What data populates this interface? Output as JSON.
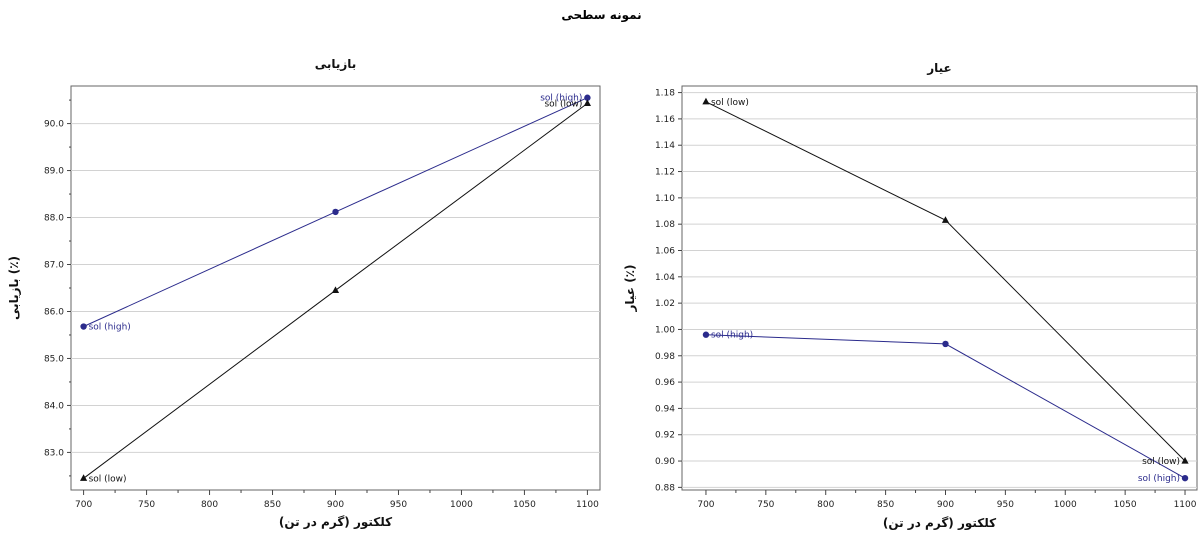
{
  "figure": {
    "title": "نمونه سطحی"
  },
  "chart_data": [
    {
      "type": "line",
      "title": "بازیابی",
      "xlabel": "کلکتور (گرم در تن)",
      "ylabel": "بازیابی (٪)",
      "xlim": [
        690,
        1110
      ],
      "ylim": [
        82.2,
        90.8
      ],
      "xticks": [
        700,
        750,
        800,
        850,
        900,
        950,
        1000,
        1050,
        1100
      ],
      "xtick_labels": [
        "700",
        "750",
        "800",
        "850",
        "900",
        "950",
        "1000",
        "1050",
        "1100"
      ],
      "yticks": [
        83,
        84,
        85,
        86,
        87,
        88,
        89,
        90
      ],
      "ytick_labels": [
        "83.0",
        "84.0",
        "85.0",
        "86.0",
        "87.0",
        "88.0",
        "89.0",
        "90.0"
      ],
      "grid": true,
      "series": [
        {
          "name": "sol (high)",
          "color": "#2b2b8c",
          "marker": "circle",
          "x": [
            700,
            900,
            1100
          ],
          "y": [
            85.68,
            88.12,
            90.55
          ]
        },
        {
          "name": "sol (low)",
          "color": "#111111",
          "marker": "triangle",
          "x": [
            700,
            900,
            1100
          ],
          "y": [
            82.45,
            86.45,
            90.43
          ]
        }
      ],
      "annotations": [
        {
          "text": "sol (high)",
          "series": 0,
          "point": 0,
          "side": "right"
        },
        {
          "text": "sol (high)",
          "series": 0,
          "point": 2,
          "side": "left"
        },
        {
          "text": "sol (low)",
          "series": 1,
          "point": 0,
          "side": "right"
        },
        {
          "text": "sol (low)",
          "series": 1,
          "point": 2,
          "side": "left"
        }
      ]
    },
    {
      "type": "line",
      "title": "عیار",
      "xlabel": "کلکتور (گرم در تن)",
      "ylabel": "عیار (٪)",
      "xlim": [
        680,
        1110
      ],
      "ylim": [
        0.878,
        1.185
      ],
      "xticks": [
        700,
        750,
        800,
        850,
        900,
        950,
        1000,
        1050,
        1100
      ],
      "xtick_labels": [
        "700",
        "750",
        "800",
        "850",
        "900",
        "950",
        "1000",
        "1050",
        "1100"
      ],
      "yticks": [
        0.88,
        0.9,
        0.92,
        0.94,
        0.96,
        0.98,
        1.0,
        1.02,
        1.04,
        1.06,
        1.08,
        1.1,
        1.12,
        1.14,
        1.16,
        1.18
      ],
      "ytick_labels": [
        "0.88",
        "0.90",
        "0.92",
        "0.94",
        "0.96",
        "0.98",
        "1.00",
        "1.02",
        "1.04",
        "1.06",
        "1.08",
        "1.10",
        "1.12",
        "1.14",
        "1.16",
        "1.18"
      ],
      "grid": true,
      "series": [
        {
          "name": "sol (high)",
          "color": "#2b2b8c",
          "marker": "circle",
          "x": [
            700,
            900,
            1100
          ],
          "y": [
            0.996,
            0.989,
            0.887
          ]
        },
        {
          "name": "sol (low)",
          "color": "#111111",
          "marker": "triangle",
          "x": [
            700,
            900,
            1100
          ],
          "y": [
            1.173,
            1.083,
            0.9
          ]
        }
      ],
      "annotations": [
        {
          "text": "sol (high)",
          "series": 0,
          "point": 0,
          "side": "right"
        },
        {
          "text": "sol (high)",
          "series": 0,
          "point": 2,
          "side": "left"
        },
        {
          "text": "sol (low)",
          "series": 1,
          "point": 0,
          "side": "right"
        },
        {
          "text": "sol (low)",
          "series": 1,
          "point": 2,
          "side": "left"
        }
      ]
    }
  ]
}
